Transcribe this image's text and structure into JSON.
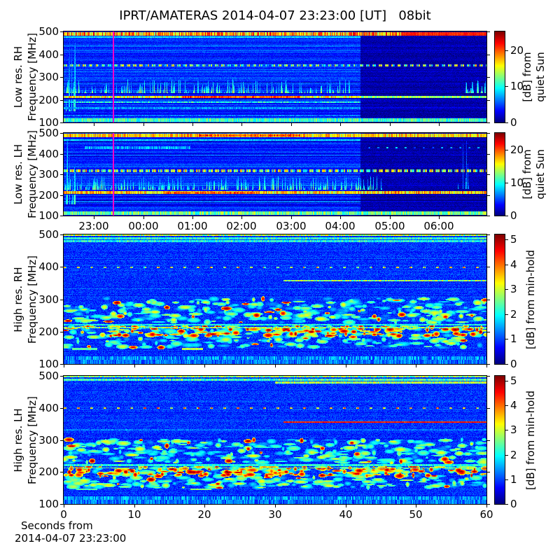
{
  "title": "IPRT/AMATERAS 2014-04-07 23:23:00 [UT]   08bit",
  "footer": {
    "line1": "Seconds from",
    "line2": "2014-04-07 23:23:00"
  },
  "colors": {
    "background": "#ffffff",
    "axis": "#000000",
    "vline": "#ff00c8"
  },
  "chart_data": [
    {
      "id": "lowres-rh",
      "type": "heatmap",
      "colormap": "jet",
      "ylabel": [
        "Low res. RH",
        "Frequency [MHz]"
      ],
      "ylim": [
        100,
        500
      ],
      "yticks": [
        500,
        400,
        300,
        200,
        100
      ],
      "xticks": {
        "positions": [
          0.071,
          0.188,
          0.305,
          0.421,
          0.538,
          0.654,
          0.771,
          0.887
        ],
        "labels": [
          "23:00",
          "00:00",
          "01:00",
          "02:00",
          "03:00",
          "04:00",
          "05:00",
          "06:00"
        ],
        "show_labels": false
      },
      "colorbar": {
        "ticks": [
          0,
          10,
          20
        ],
        "vmax": 25.2,
        "label": [
          "[dB] from",
          "quiet Sun"
        ]
      },
      "seed": 11,
      "background": {
        "base": 0.17,
        "noise": 0.04,
        "row_noise": 0.05
      },
      "night": {
        "x0": 0.702,
        "base": 0.045,
        "noise": 0.04
      },
      "vline": 0.1167,
      "bands": [
        {
          "f": [
            484,
            498
          ],
          "x": [
            0,
            0.798
          ],
          "k": "sp",
          "v": 0.7,
          "vv": 0.2
        },
        {
          "f": [
            484,
            498
          ],
          "x": [
            0.798,
            1
          ],
          "k": "so",
          "v": 0.84,
          "vv": 0.04
        },
        {
          "f": [
            474,
            478
          ],
          "x": [
            0,
            0.702
          ],
          "k": "so",
          "v": 0.36,
          "vv": 0.06
        },
        {
          "f": [
            348,
            353
          ],
          "x": [
            0,
            1
          ],
          "k": "da",
          "v": 0.48,
          "vv": 0.26,
          "d": 5,
          "g": 4
        },
        {
          "f": [
            292,
            296
          ],
          "x": [
            0,
            0.702
          ],
          "k": "so",
          "v": 0.2,
          "vv": 0.04
        },
        {
          "f": [
            230,
            288
          ],
          "x": [
            0,
            0.68
          ],
          "k": "st",
          "v": 0.44,
          "vv": 0.14,
          "n": 260
        },
        {
          "f": [
            230,
            288
          ],
          "x": [
            0.95,
            1
          ],
          "k": "st",
          "v": 0.44,
          "vv": 0.14,
          "n": 25
        },
        {
          "f": [
            150,
            480
          ],
          "x": [
            0.005,
            0.03
          ],
          "k": "st",
          "v": 0.42,
          "vv": 0.1,
          "n": 14
        },
        {
          "f": [
            207,
            216
          ],
          "x": [
            0,
            0.702
          ],
          "k": "sp",
          "v": 0.62,
          "vv": 0.16
        },
        {
          "f": [
            208,
            214
          ],
          "x": [
            0.28,
            0.56
          ],
          "k": "sp",
          "v": 0.8,
          "vv": 0.1
        },
        {
          "f": [
            207,
            214
          ],
          "x": [
            0.702,
            1
          ],
          "k": "sp",
          "v": 0.52,
          "vv": 0.1
        },
        {
          "f": [
            203,
            205
          ],
          "x": [
            0,
            0.702
          ],
          "k": "so",
          "v": 0.07,
          "vv": 0.02
        },
        {
          "f": [
            186,
            190
          ],
          "x": [
            0,
            0.702
          ],
          "k": "sp",
          "v": 0.38,
          "vv": 0.12
        },
        {
          "f": [
            160,
            164
          ],
          "x": [
            0,
            0.702
          ],
          "k": "so",
          "v": 0.26,
          "vv": 0.06
        },
        {
          "f": [
            128,
            132
          ],
          "x": [
            0,
            0.702
          ],
          "k": "so",
          "v": 0.24,
          "vv": 0.05
        },
        {
          "f": [
            104,
            117
          ],
          "x": [
            0,
            1
          ],
          "k": "sp",
          "v": 0.44,
          "vv": 0.1
        }
      ]
    },
    {
      "id": "lowres-lh",
      "type": "heatmap",
      "colormap": "jet",
      "ylabel": [
        "Low res. LH",
        "Frequency [MHz]"
      ],
      "ylim": [
        100,
        500
      ],
      "yticks": [
        500,
        400,
        300,
        200,
        100
      ],
      "xticks": {
        "positions": [
          0.071,
          0.188,
          0.305,
          0.421,
          0.538,
          0.654,
          0.771,
          0.887
        ],
        "labels": [
          "23:00",
          "00:00",
          "01:00",
          "02:00",
          "03:00",
          "04:00",
          "05:00",
          "06:00"
        ],
        "show_labels": true
      },
      "colorbar": {
        "ticks": [
          0,
          10,
          20
        ],
        "vmax": 25.2,
        "label": [
          "[dB] from",
          "quiet Sun"
        ]
      },
      "seed": 22,
      "background": {
        "base": 0.17,
        "noise": 0.04,
        "row_noise": 0.05
      },
      "night": {
        "x0": 0.702,
        "base": 0.045,
        "noise": 0.04
      },
      "vline": 0.1167,
      "bands": [
        {
          "f": [
            483,
            497
          ],
          "x": [
            0,
            1
          ],
          "k": "sp",
          "v": 0.66,
          "vv": 0.14
        },
        {
          "f": [
            486,
            494
          ],
          "x": [
            0.32,
            0.56
          ],
          "k": "sp",
          "v": 0.8,
          "vv": 0.12
        },
        {
          "f": [
            466,
            470
          ],
          "x": [
            0,
            0.702
          ],
          "k": "so",
          "v": 0.34,
          "vv": 0.06
        },
        {
          "f": [
            424,
            436
          ],
          "x": [
            0.05,
            0.3
          ],
          "k": "sp",
          "v": 0.28,
          "vv": 0.1
        },
        {
          "f": [
            427,
            432
          ],
          "x": [
            0.72,
            0.99
          ],
          "k": "da",
          "v": 0.28,
          "vv": 0.14,
          "d": 3,
          "g": 10
        },
        {
          "f": [
            397,
            401
          ],
          "x": [
            0,
            0.702
          ],
          "k": "so",
          "v": 0.1,
          "vv": 0.02
        },
        {
          "f": [
            311,
            321
          ],
          "x": [
            0,
            1
          ],
          "k": "da",
          "v": 0.52,
          "vv": 0.26,
          "d": 6,
          "g": 3
        },
        {
          "f": [
            294,
            298
          ],
          "x": [
            0,
            0.702
          ],
          "k": "so",
          "v": 0.1,
          "vv": 0.02
        },
        {
          "f": [
            226,
            290
          ],
          "x": [
            0,
            0.76
          ],
          "k": "st",
          "v": 0.44,
          "vv": 0.14,
          "n": 300
        },
        {
          "f": [
            150,
            470
          ],
          "x": [
            0.005,
            0.03
          ],
          "k": "st",
          "v": 0.42,
          "vv": 0.1,
          "n": 14
        },
        {
          "f": [
            230,
            470
          ],
          "x": [
            0.93,
            0.96
          ],
          "k": "st",
          "v": 0.3,
          "vv": 0.08,
          "n": 6
        },
        {
          "f": [
            205,
            216
          ],
          "x": [
            0,
            1
          ],
          "k": "sp",
          "v": 0.66,
          "vv": 0.16
        },
        {
          "f": [
            206,
            214
          ],
          "x": [
            0.24,
            0.46
          ],
          "k": "sp",
          "v": 0.78,
          "vv": 0.1
        },
        {
          "f": [
            201,
            203
          ],
          "x": [
            0,
            0.702
          ],
          "k": "so",
          "v": 0.07,
          "vv": 0.02
        },
        {
          "f": [
            147,
            151
          ],
          "x": [
            0,
            0.702
          ],
          "k": "so",
          "v": 0.08,
          "vv": 0.02
        },
        {
          "f": [
            103,
            116
          ],
          "x": [
            0,
            1
          ],
          "k": "sp",
          "v": 0.48,
          "vv": 0.14
        }
      ]
    },
    {
      "id": "highres-rh",
      "type": "heatmap",
      "colormap": "jet",
      "ylabel": [
        "High res. RH",
        "Frequency [MHz]"
      ],
      "ylim": [
        100,
        500
      ],
      "yticks": [
        500,
        400,
        300,
        200,
        100
      ],
      "xticks": {
        "positions": [
          0,
          0.1667,
          0.3333,
          0.5,
          0.6667,
          0.8333,
          1
        ],
        "labels": [
          "0",
          "10",
          "20",
          "30",
          "40",
          "50",
          "60"
        ],
        "show_labels": false
      },
      "colorbar": {
        "ticks": [
          0,
          1,
          2,
          3,
          4,
          5
        ],
        "vmax": 5.2,
        "label": [
          "[dB] from min-hold"
        ]
      },
      "seed": 33,
      "background": {
        "base": 0.17,
        "noise": 0.06,
        "row_noise": 0.02
      },
      "night": null,
      "vline": null,
      "bands": [
        {
          "f": [
            497,
            500
          ],
          "x": [
            0,
            1
          ],
          "k": "sp",
          "v": 0.55,
          "vv": 0.15
        },
        {
          "f": [
            488,
            492
          ],
          "x": [
            0,
            1
          ],
          "k": "sp",
          "v": 0.42,
          "vv": 0.1
        },
        {
          "f": [
            478,
            483
          ],
          "x": [
            0,
            1
          ],
          "k": "sp",
          "v": 0.4,
          "vv": 0.1
        },
        {
          "f": [
            398,
            401
          ],
          "x": [
            0,
            1
          ],
          "k": "da",
          "v": 0.6,
          "vv": 0.22,
          "d": 4,
          "g": 15
        },
        {
          "f": [
            357,
            359
          ],
          "x": [
            0.52,
            1
          ],
          "k": "so",
          "v": 0.52,
          "vv": 0.14
        },
        {
          "f": [
            228,
            302
          ],
          "x": [
            0,
            1
          ],
          "k": "bl",
          "v": 0.42,
          "vv": 0.22,
          "n": 340,
          "core": 0.06
        },
        {
          "f": [
            186,
            216
          ],
          "x": [
            0,
            1
          ],
          "k": "bl",
          "v": 0.55,
          "vv": 0.3,
          "n": 300,
          "core": 0.3
        },
        {
          "f": [
            150,
            184
          ],
          "x": [
            0,
            1
          ],
          "k": "bl",
          "v": 0.4,
          "vv": 0.2,
          "n": 160,
          "core": 0.04
        },
        {
          "f": [
            211,
            213
          ],
          "x": [
            0,
            1
          ],
          "k": "sp",
          "v": 0.5,
          "vv": 0.2
        },
        {
          "f": [
            219,
            222
          ],
          "x": [
            0,
            1
          ],
          "k": "so",
          "v": 0.4,
          "vv": 0.08
        },
        {
          "f": [
            144,
            147
          ],
          "x": [
            0.02,
            0.08
          ],
          "k": "so",
          "v": 0.46,
          "vv": 0.05
        },
        {
          "f": [
            144,
            147
          ],
          "x": [
            0.28,
            0.33
          ],
          "k": "so",
          "v": 0.55,
          "vv": 0.05
        },
        {
          "f": [
            117,
            119
          ],
          "x": [
            0,
            1
          ],
          "k": "so",
          "v": 0.1,
          "vv": 0.03
        },
        {
          "f": [
            113,
            121
          ],
          "x": [
            0,
            1
          ],
          "k": "sp",
          "v": 0.26,
          "vv": 0.12
        },
        {
          "f": [
            100,
            111
          ],
          "x": [
            0,
            1
          ],
          "k": "sp",
          "v": 0.24,
          "vv": 0.1
        }
      ]
    },
    {
      "id": "highres-lh",
      "type": "heatmap",
      "colormap": "jet",
      "ylabel": [
        "High res. LH",
        "Frequency [MHz]"
      ],
      "ylim": [
        100,
        500
      ],
      "yticks": [
        500,
        400,
        300,
        200,
        100
      ],
      "xticks": {
        "positions": [
          0,
          0.1667,
          0.3333,
          0.5,
          0.6667,
          0.8333,
          1
        ],
        "labels": [
          "0",
          "10",
          "20",
          "30",
          "40",
          "50",
          "60"
        ],
        "show_labels": true
      },
      "colorbar": {
        "ticks": [
          0,
          1,
          2,
          3,
          4,
          5
        ],
        "vmax": 5.2,
        "label": [
          "[dB] from min-hold"
        ]
      },
      "seed": 44,
      "background": {
        "base": 0.17,
        "noise": 0.06,
        "row_noise": 0.02
      },
      "night": null,
      "vline": null,
      "bands": [
        {
          "f": [
            497,
            500
          ],
          "x": [
            0,
            1
          ],
          "k": "sp",
          "v": 0.52,
          "vv": 0.14
        },
        {
          "f": [
            486,
            491
          ],
          "x": [
            0,
            1
          ],
          "k": "sp",
          "v": 0.44,
          "vv": 0.12
        },
        {
          "f": [
            478,
            482
          ],
          "x": [
            0.5,
            1
          ],
          "k": "so",
          "v": 0.55,
          "vv": 0.12
        },
        {
          "f": [
            398,
            401
          ],
          "x": [
            0,
            1
          ],
          "k": "da",
          "v": 0.68,
          "vv": 0.2,
          "d": 4,
          "g": 15
        },
        {
          "f": [
            354,
            357
          ],
          "x": [
            0.52,
            1
          ],
          "k": "so",
          "v": 0.86,
          "vv": 0.04
        },
        {
          "f": [
            330,
            333
          ],
          "x": [
            0,
            1
          ],
          "k": "so",
          "v": 0.24,
          "vv": 0.05
        },
        {
          "f": [
            228,
            302
          ],
          "x": [
            0,
            1
          ],
          "k": "bl",
          "v": 0.42,
          "vv": 0.22,
          "n": 380,
          "core": 0.05
        },
        {
          "f": [
            186,
            216
          ],
          "x": [
            0,
            1
          ],
          "k": "bl",
          "v": 0.56,
          "vv": 0.3,
          "n": 320,
          "core": 0.32
        },
        {
          "f": [
            150,
            184
          ],
          "x": [
            0,
            1
          ],
          "k": "bl",
          "v": 0.42,
          "vv": 0.22,
          "n": 200,
          "core": 0.06
        },
        {
          "f": [
            211,
            213
          ],
          "x": [
            0,
            1
          ],
          "k": "sp",
          "v": 0.5,
          "vv": 0.2
        },
        {
          "f": [
            219,
            222
          ],
          "x": [
            0,
            1
          ],
          "k": "so",
          "v": 0.4,
          "vv": 0.08
        },
        {
          "f": [
            144,
            147
          ],
          "x": [
            0.03,
            0.08
          ],
          "k": "so",
          "v": 0.46,
          "vv": 0.05
        },
        {
          "f": [
            144,
            147
          ],
          "x": [
            0.3,
            0.35
          ],
          "k": "so",
          "v": 0.5,
          "vv": 0.05
        },
        {
          "f": [
            117,
            119
          ],
          "x": [
            0,
            1
          ],
          "k": "so",
          "v": 0.1,
          "vv": 0.03
        },
        {
          "f": [
            113,
            121
          ],
          "x": [
            0,
            1
          ],
          "k": "sp",
          "v": 0.26,
          "vv": 0.12
        },
        {
          "f": [
            100,
            111
          ],
          "x": [
            0,
            1
          ],
          "k": "sp",
          "v": 0.24,
          "vv": 0.1
        }
      ]
    }
  ]
}
